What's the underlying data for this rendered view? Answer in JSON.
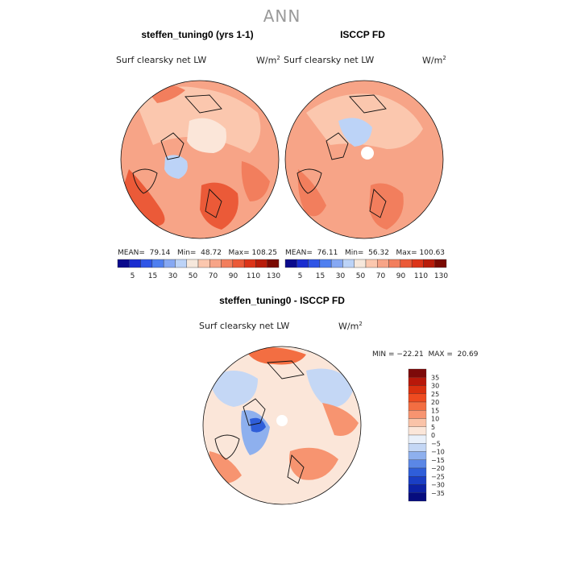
{
  "title": "ANN",
  "panels": [
    {
      "title": "steffen_tuning0 (yrs 1-1)",
      "field": "Surf clearsky net LW",
      "units": "W/m",
      "units_sup": "2",
      "stats": "MEAN=  79.14   Min=  48.72   Max= 108.25"
    },
    {
      "title": "ISCCP FD",
      "field": "Surf clearsky net LW",
      "units": "W/m",
      "units_sup": "2",
      "stats": "MEAN=  76.11   Min=  56.32   Max= 100.63"
    }
  ],
  "diff_panel": {
    "title": "steffen_tuning0 - ISCCP FD",
    "field": "Surf clearsky net LW",
    "units": "W/m",
    "units_sup": "2",
    "stats": "MIN = −22.21  MAX =  20.69"
  },
  "colorbar_top": {
    "labels": [
      "5",
      "15",
      "30",
      "50",
      "70",
      "90",
      "110",
      "130"
    ],
    "colors": [
      "#0a0a8c",
      "#1a2dd0",
      "#2f55e6",
      "#4f7ff0",
      "#86a8f3",
      "#bcd3f7",
      "#f6e8dc",
      "#fbc7ae",
      "#f7a487",
      "#f27e5d",
      "#eb5a38",
      "#dc3418",
      "#b81c0a",
      "#7a0a02"
    ]
  },
  "colorbar_diff": {
    "labels": [
      "35",
      "30",
      "25",
      "20",
      "15",
      "10",
      "5",
      "0",
      "−5",
      "−10",
      "−15",
      "−20",
      "−25",
      "−30",
      "−35"
    ],
    "colors": [
      "#7d0a0a",
      "#b8180a",
      "#d9300f",
      "#ee4b20",
      "#f36e42",
      "#f79470",
      "#fac3a8",
      "#fbe6d9",
      "#e9f0fa",
      "#c4d7f5",
      "#8eb0ee",
      "#5b87e6",
      "#2f5ed9",
      "#1a3ec4",
      "#0d22a5",
      "#060c7e"
    ]
  }
}
